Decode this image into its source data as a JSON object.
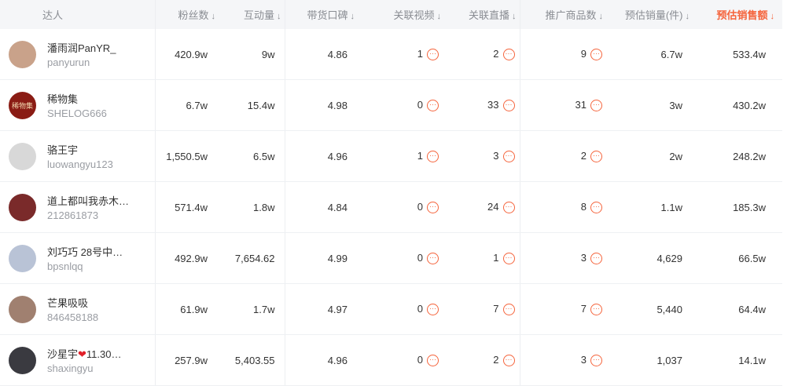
{
  "colors": {
    "accent": "#f5643c",
    "header_bg": "#f5f6f8"
  },
  "headers": [
    "达人",
    "粉丝数",
    "互动量",
    "带货口碑",
    "关联视频",
    "关联直播",
    "推广商品数",
    "预估销量(件)",
    "预估销售额"
  ],
  "sort_icon": "↓",
  "more_icon": "···",
  "rows": [
    {
      "name": "潘雨润PanYR_",
      "id": "panyurun",
      "fans": "420.9w",
      "interact": "9w",
      "rating": "4.86",
      "videos": "1",
      "lives": "2",
      "products": "9",
      "sales": "6.7w",
      "revenue": "533.4w",
      "avatar": "#c9a28a"
    },
    {
      "name": "稀物集",
      "id": "SHELOG666",
      "fans": "6.7w",
      "interact": "15.4w",
      "rating": "4.98",
      "videos": "0",
      "lives": "33",
      "products": "31",
      "sales": "3w",
      "revenue": "430.2w",
      "avatar": "#8a1c14",
      "logo": "稀物集"
    },
    {
      "name": "骆王宇",
      "id": "luowangyu123",
      "fans": "1,550.5w",
      "interact": "6.5w",
      "rating": "4.96",
      "videos": "1",
      "lives": "3",
      "products": "2",
      "sales": "2w",
      "revenue": "248.2w",
      "avatar": "#d8d8d8"
    },
    {
      "name": "道上都叫我赤木…",
      "id": "212861873",
      "fans": "571.4w",
      "interact": "1.8w",
      "rating": "4.84",
      "videos": "0",
      "lives": "24",
      "products": "8",
      "sales": "1.1w",
      "revenue": "185.3w",
      "avatar": "#7a2a2a"
    },
    {
      "name": "刘巧巧 28号中…",
      "id": "bpsnlqq",
      "fans": "492.9w",
      "interact": "7,654.62",
      "rating": "4.99",
      "videos": "0",
      "lives": "1",
      "products": "3",
      "sales": "4,629",
      "revenue": "66.5w",
      "avatar": "#b9c3d6"
    },
    {
      "name": "芒果吸吸",
      "id": "846458188",
      "fans": "61.9w",
      "interact": "1.7w",
      "rating": "4.97",
      "videos": "0",
      "lives": "7",
      "products": "7",
      "sales": "5,440",
      "revenue": "64.4w",
      "avatar": "#a08070"
    },
    {
      "name": "沙星宇",
      "name_suffix": "11.30…",
      "id": "shaxingyu",
      "fans": "257.9w",
      "interact": "5,403.55",
      "rating": "4.96",
      "videos": "0",
      "lives": "2",
      "products": "3",
      "sales": "1,037",
      "revenue": "14.1w",
      "avatar": "#3a3a40"
    }
  ]
}
